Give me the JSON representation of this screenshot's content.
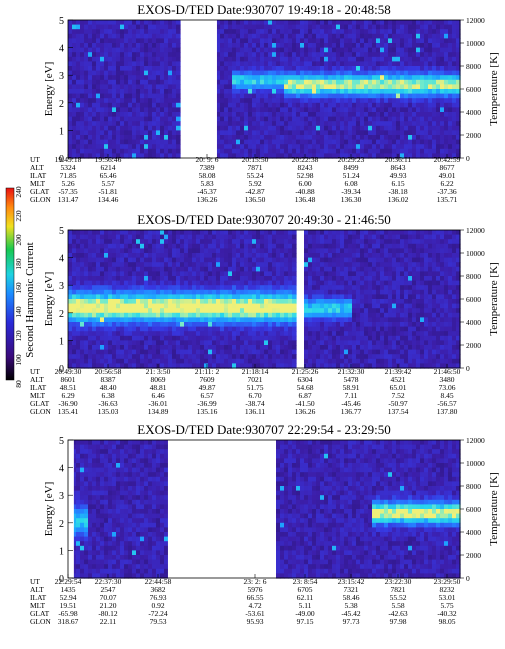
{
  "colorbar": {
    "label": "Second Harmonic Current",
    "ticks": [
      "80",
      "100",
      "120",
      "140",
      "160",
      "180",
      "200",
      "220",
      "240"
    ],
    "range": [
      80,
      240
    ]
  },
  "chart_data": [
    {
      "type": "heatmap",
      "title": "EXOS-D/TED   Date:930707  19:49:18 - 20:48:58",
      "ylabel": "Energy [eV]",
      "y2label": "Temperature [K]",
      "ylim": [
        0,
        5
      ],
      "y2lim": [
        0,
        12000
      ],
      "yticks": [
        "0",
        "1",
        "2",
        "3",
        "4",
        "5"
      ],
      "y2ticks": [
        "0",
        "2000",
        "4000",
        "6000",
        "8000",
        "10000",
        "12000"
      ],
      "gaps": [
        [
          0.29,
          0.38
        ]
      ],
      "bands": [
        {
          "x0": 0.42,
          "x1": 0.55,
          "center": 2.8,
          "width": 0.45,
          "intensity": 0.55
        },
        {
          "x0": 0.55,
          "x1": 1.0,
          "center": 2.65,
          "width": 0.55,
          "intensity": 0.8
        }
      ],
      "rows": [
        {
          "label": "UT",
          "values": [
            "19:49:18",
            "19:56:46",
            "",
            "20: 9: 6",
            "20:15:50",
            "20:22:38",
            "20:29:23",
            "20:36:11",
            "20:42:59"
          ]
        },
        {
          "label": "ALT",
          "values": [
            "5324",
            "6214",
            "",
            "7389",
            "7871",
            "8243",
            "8499",
            "8643",
            "8677"
          ]
        },
        {
          "label": "ILAT",
          "values": [
            "71.85",
            "65.46",
            "",
            "58.08",
            "55.24",
            "52.98",
            "51.24",
            "49.93",
            "49.01"
          ]
        },
        {
          "label": "MLT",
          "values": [
            "5.26",
            "5.57",
            "",
            "5.83",
            "5.92",
            "6.00",
            "6.08",
            "6.15",
            "6.22"
          ]
        },
        {
          "label": "GLAT",
          "values": [
            "-57.35",
            "-51.81",
            "",
            "-45.37",
            "-42.87",
            "-40.88",
            "-39.34",
            "-38.18",
            "-37.36"
          ]
        },
        {
          "label": "GLON",
          "values": [
            "131.47",
            "134.46",
            "",
            "136.26",
            "136.50",
            "136.48",
            "136.30",
            "136.02",
            "135.71"
          ]
        }
      ]
    },
    {
      "type": "heatmap",
      "title": "EXOS-D/TED   Date:930707  20:49:30 - 21:46:50",
      "ylabel": "Energy [eV]",
      "y2label": "Temperature [K]",
      "ylim": [
        0,
        5
      ],
      "y2lim": [
        0,
        12000
      ],
      "yticks": [
        "0",
        "1",
        "2",
        "3",
        "4",
        "5"
      ],
      "y2ticks": [
        "0",
        "2000",
        "4000",
        "6000",
        "8000",
        "10000",
        "12000"
      ],
      "gaps": [
        [
          0.585,
          0.6
        ]
      ],
      "bands": [
        {
          "x0": 0.0,
          "x1": 0.585,
          "center": 2.2,
          "width": 0.75,
          "intensity": 0.9
        },
        {
          "x0": 0.6,
          "x1": 0.72,
          "center": 2.15,
          "width": 0.5,
          "intensity": 0.55
        }
      ],
      "rows": [
        {
          "label": "UT",
          "values": [
            "20:49:30",
            "20:56:58",
            "21: 3:50",
            "21:11: 2",
            "21:18:14",
            "21:25:26",
            "21:32:30",
            "21:39:42",
            "21:46:50"
          ]
        },
        {
          "label": "ALT",
          "values": [
            "8601",
            "8387",
            "8069",
            "7609",
            "7021",
            "6304",
            "5478",
            "4521",
            "3480"
          ]
        },
        {
          "label": "ILAT",
          "values": [
            "48.51",
            "48.40",
            "48.81",
            "49.87",
            "51.75",
            "54.68",
            "58.91",
            "65.01",
            "73.06"
          ]
        },
        {
          "label": "MLT",
          "values": [
            "6.29",
            "6.38",
            "6.46",
            "6.57",
            "6.70",
            "6.87",
            "7.11",
            "7.52",
            "8.45"
          ]
        },
        {
          "label": "GLAT",
          "values": [
            "-36.90",
            "-36.63",
            "-36.01",
            "-36.99",
            "-38.74",
            "-41.50",
            "-45.46",
            "-50.97",
            "-56.57"
          ]
        },
        {
          "label": "GLON",
          "values": [
            "135.41",
            "135.03",
            "134.89",
            "135.16",
            "136.11",
            "136.26",
            "136.77",
            "137.54",
            "137.80"
          ]
        }
      ]
    },
    {
      "type": "heatmap",
      "title": "EXOS-D/TED   Date:930707  22:29:54 - 23:29:50",
      "ylabel": "Energy [eV]",
      "y2label": "Temperature [K]",
      "ylim": [
        0,
        5
      ],
      "y2lim": [
        0,
        12000
      ],
      "yticks": [
        "0",
        "1",
        "2",
        "3",
        "4",
        "5"
      ],
      "y2ticks": [
        "0",
        "2000",
        "4000",
        "6000",
        "8000",
        "10000",
        "12000"
      ],
      "gaps": [
        [
          0.0,
          0.015
        ],
        [
          0.255,
          0.53
        ]
      ],
      "bands": [
        {
          "x0": 0.015,
          "x1": 0.05,
          "center": 2.05,
          "width": 0.7,
          "intensity": 0.55
        },
        {
          "x0": 0.78,
          "x1": 1.0,
          "center": 2.35,
          "width": 0.55,
          "intensity": 0.85
        }
      ],
      "rows": [
        {
          "label": "UT",
          "values": [
            "22:29:54",
            "22:37:30",
            "22:44:58",
            "",
            "23: 2: 6",
            "23: 8:54",
            "23:15:42",
            "23:22:30",
            "23:29:50"
          ]
        },
        {
          "label": "ALT",
          "values": [
            "1435",
            "2547",
            "3682",
            "",
            "5976",
            "6705",
            "7321",
            "7821",
            "8232"
          ]
        },
        {
          "label": "ILAT",
          "values": [
            "52.94",
            "70.07",
            "76.93",
            "",
            "66.55",
            "62.11",
            "58.46",
            "55.52",
            "53.01"
          ]
        },
        {
          "label": "MLT",
          "values": [
            "19.51",
            "21.20",
            "0.92",
            "",
            "4.72",
            "5.11",
            "5.38",
            "5.58",
            "5.75"
          ]
        },
        {
          "label": "GLAT",
          "values": [
            "-65.98",
            "-80.12",
            "-72.24",
            "",
            "-53.61",
            "-49.00",
            "-45.42",
            "-42.63",
            "-40.32"
          ]
        },
        {
          "label": "GLON",
          "values": [
            "318.67",
            "22.11",
            "79.53",
            "",
            "95.93",
            "97.15",
            "97.73",
            "97.98",
            "98.05"
          ]
        }
      ]
    }
  ]
}
